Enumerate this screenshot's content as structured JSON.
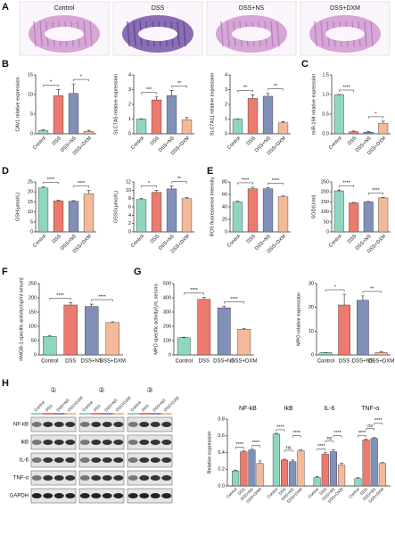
{
  "figure": {
    "panel_labels": [
      "A",
      "B",
      "C",
      "D",
      "E",
      "F",
      "G",
      "H"
    ],
    "histology_labels": [
      "Control",
      "DSS",
      "DSS+NS",
      "DSS+DXM"
    ],
    "blot": {
      "lanes": [
        "①",
        "②",
        "③"
      ],
      "lane_labels": [
        "Control",
        "DSS",
        "DSS+NS",
        "DSS+DXM"
      ],
      "proteins": [
        "NF-kB",
        "IkB",
        "IL-6",
        "TNF-α",
        "GAPDH"
      ]
    }
  },
  "chart_data": [
    {
      "type": "bar",
      "ylabel": "CAV1 relative expression",
      "categories": [
        "Control",
        "DSS",
        "DSS+NS",
        "DSS+DXM"
      ],
      "colors": [
        "#8fd6c1",
        "#ec7a6e",
        "#8090b8",
        "#f4b998"
      ],
      "values": [
        0.8,
        9.7,
        10.3,
        0.6
      ],
      "errors": [
        0.2,
        1.6,
        2.4,
        0.3
      ],
      "ylim": [
        0,
        15
      ],
      "yticks": [
        0,
        5,
        10,
        15
      ],
      "significance": [
        {
          "between": [
            "Control",
            "DSS"
          ],
          "label": "*"
        },
        {
          "between": [
            "DSS+NS",
            "DSS+DXM"
          ],
          "label": "*"
        }
      ]
    },
    {
      "type": "bar",
      "ylabel": "SLC7A5 relative expression",
      "categories": [
        "Control",
        "DSS",
        "DSS+NS",
        "DSS+DXM"
      ],
      "colors": [
        "#8fd6c1",
        "#ec7a6e",
        "#8090b8",
        "#f4b998"
      ],
      "values": [
        1.0,
        2.3,
        2.6,
        0.95
      ],
      "errors": [
        0.02,
        0.2,
        0.35,
        0.15
      ],
      "ylim": [
        0,
        4
      ],
      "yticks": [
        0,
        1,
        2,
        3,
        4
      ],
      "significance": [
        {
          "between": [
            "Control",
            "DSS"
          ],
          "label": "***"
        },
        {
          "between": [
            "DSS+NS",
            "DSS+DXM"
          ],
          "label": "**"
        }
      ]
    },
    {
      "type": "bar",
      "ylabel": "SLC7A11 relative expression",
      "categories": [
        "Control",
        "DSS",
        "DSS+NS",
        "DSS+DXM"
      ],
      "colors": [
        "#8fd6c1",
        "#ec7a6e",
        "#8090b8",
        "#f4b998"
      ],
      "values": [
        1.0,
        2.4,
        2.55,
        0.75
      ],
      "errors": [
        0.02,
        0.25,
        0.2,
        0.08
      ],
      "ylim": [
        0,
        4
      ],
      "yticks": [
        0,
        1,
        2,
        3,
        4
      ],
      "significance": [
        {
          "between": [
            "Control",
            "DSS"
          ],
          "label": "**"
        },
        {
          "between": [
            "DSS+NS",
            "DSS+DXM"
          ],
          "label": "**"
        }
      ]
    },
    {
      "type": "bar",
      "ylabel": "miR-194 relative expression",
      "categories": [
        "Control",
        "DSS",
        "DSS+NS",
        "DSS+DXM"
      ],
      "colors": [
        "#8fd6c1",
        "#ec7a6e",
        "#8090b8",
        "#f4b998"
      ],
      "values": [
        1.0,
        0.05,
        0.04,
        0.27
      ],
      "errors": [
        0.0,
        0.02,
        0.02,
        0.05
      ],
      "ylim": [
        0,
        1.5
      ],
      "yticks": [
        {
          "value": 0,
          "label": "0.0"
        },
        0.5,
        {
          "value": 1,
          "label": "1.0"
        },
        1.5
      ],
      "significance": [
        {
          "between": [
            "Control",
            "DSS"
          ],
          "label": "****"
        },
        {
          "between": [
            "DSS+NS",
            "DSS+DXM"
          ],
          "label": "*"
        }
      ]
    },
    {
      "type": "bar",
      "ylabel": "GSH(μmol/L)",
      "categories": [
        "Control",
        "DSS",
        "DSS+NS",
        "DSS+DXM"
      ],
      "colors": [
        "#8fd6c1",
        "#ec7a6e",
        "#8090b8",
        "#f4b998"
      ],
      "values": [
        22,
        15.5,
        15.3,
        19
      ],
      "errors": [
        0.6,
        0.3,
        0.3,
        1.8
      ],
      "ylim": [
        0,
        25
      ],
      "yticks": [
        0,
        5,
        10,
        15,
        20,
        25
      ],
      "significance": [
        {
          "between": [
            "Control",
            "DSS"
          ],
          "label": "****"
        },
        {
          "between": [
            "DSS+NS",
            "DSS+DXM"
          ],
          "label": "****"
        }
      ]
    },
    {
      "type": "bar",
      "ylabel": "GSSG(μmol/L)",
      "categories": [
        "Control",
        "DSS",
        "DSS+NS",
        "DSS+DXM"
      ],
      "colors": [
        "#8fd6c1",
        "#ec7a6e",
        "#8090b8",
        "#f4b998"
      ],
      "values": [
        7.8,
        9.5,
        10.3,
        8
      ],
      "errors": [
        0.2,
        0.5,
        0.7,
        0.2
      ],
      "ylim": [
        0,
        12
      ],
      "yticks": [
        0,
        2,
        4,
        6,
        8,
        10,
        12
      ],
      "significance": [
        {
          "between": [
            "Control",
            "DSS"
          ],
          "label": "*"
        },
        {
          "between": [
            "DSS+NS",
            "DSS+DXM"
          ],
          "label": "**"
        }
      ]
    },
    {
      "type": "bar",
      "ylabel": "ROS fluorescence Intensity",
      "categories": [
        "Control",
        "DSS",
        "DSS+NS",
        "DSS+DXM"
      ],
      "colors": [
        "#8fd6c1",
        "#ec7a6e",
        "#8090b8",
        "#f4b998"
      ],
      "values": [
        48,
        69,
        69,
        56
      ],
      "errors": [
        1,
        2.5,
        2,
        1.5
      ],
      "ylim": [
        0,
        80
      ],
      "yticks": [
        0,
        20,
        40,
        60,
        80
      ],
      "significance": [
        {
          "between": [
            "Control",
            "DSS"
          ],
          "label": "****"
        },
        {
          "between": [
            "DSS+NS",
            "DSS+DXM"
          ],
          "label": "****"
        }
      ]
    },
    {
      "type": "bar",
      "ylabel": "SOD(U/ml)",
      "categories": [
        "Control",
        "DSS",
        "DSS+NS",
        "DSS+DXM"
      ],
      "colors": [
        "#8fd6c1",
        "#ec7a6e",
        "#8090b8",
        "#f4b998"
      ],
      "values": [
        205,
        145,
        150,
        170
      ],
      "errors": [
        4,
        2,
        2,
        2
      ],
      "ylim": [
        0,
        250
      ],
      "yticks": [
        0,
        50,
        100,
        150,
        200,
        250
      ],
      "significance": [
        {
          "between": [
            "Control",
            "DSS"
          ],
          "label": "****"
        },
        {
          "between": [
            "DSS+NS",
            "DSS+DXM"
          ],
          "label": "****"
        }
      ]
    },
    {
      "type": "bar",
      "ylabel": "HMGB-1 specific activity(ng/ml serum)",
      "categories": [
        "Control",
        "DSS",
        "DSS+NS",
        "DSS+DXM"
      ],
      "colors": [
        "#8fd6c1",
        "#ec7a6e",
        "#8090b8",
        "#f4b998"
      ],
      "values": [
        65,
        175,
        170,
        113
      ],
      "errors": [
        3,
        8,
        8,
        3
      ],
      "ylim": [
        0,
        250
      ],
      "yticks": [
        0,
        50,
        100,
        150,
        200,
        250
      ],
      "significance": [
        {
          "between": [
            "Control",
            "DSS"
          ],
          "label": "****"
        },
        {
          "between": [
            "DSS+NS",
            "DSS+DXM"
          ],
          "label": "****"
        }
      ]
    },
    {
      "type": "bar",
      "ylabel": "MPO specific activity(U/L serum)",
      "categories": [
        "Control",
        "DSS",
        "DSS+NS",
        "DSS+DXM"
      ],
      "colors": [
        "#8fd6c1",
        "#ec7a6e",
        "#8090b8",
        "#f4b998"
      ],
      "values": [
        120,
        390,
        330,
        180
      ],
      "errors": [
        4,
        12,
        10,
        6
      ],
      "ylim": [
        0,
        500
      ],
      "yticks": [
        0,
        100,
        200,
        300,
        400,
        500
      ],
      "significance": [
        {
          "between": [
            "Control",
            "DSS"
          ],
          "label": "****"
        },
        {
          "between": [
            "DSS+NS",
            "DSS+DXM"
          ],
          "label": "****"
        }
      ]
    },
    {
      "type": "bar",
      "ylabel": "MPO relative expression",
      "categories": [
        "Control",
        "DSS",
        "DSS+NS",
        "DSS+DXM"
      ],
      "colors": [
        "#8fd6c1",
        "#ec7a6e",
        "#8090b8",
        "#f4b998"
      ],
      "values": [
        1,
        21,
        23,
        1
      ],
      "errors": [
        0,
        4.5,
        1.8,
        0.3
      ],
      "ylim": [
        0,
        30
      ],
      "yticks": [
        0,
        10,
        20,
        30
      ],
      "significance": [
        {
          "between": [
            "Control",
            "DSS"
          ],
          "label": "*"
        },
        {
          "between": [
            "DSS+NS",
            "DSS+DXM"
          ],
          "label": "**"
        }
      ]
    },
    {
      "type": "grouped_bar",
      "ylabel": "Relative expression",
      "categories": [
        "NF-kB",
        "IkB",
        "IL-6",
        "TNF-α"
      ],
      "series": [
        {
          "name": "Control",
          "color": "#8fd6c1",
          "values": [
            0.18,
            0.62,
            0.1,
            0.09
          ],
          "errors": [
            0.01,
            0.01,
            0.01,
            0.01
          ]
        },
        {
          "name": "DSS",
          "color": "#ec7a6e",
          "values": [
            0.41,
            0.31,
            0.38,
            0.55
          ],
          "errors": [
            0.01,
            0.01,
            0.02,
            0.01
          ]
        },
        {
          "name": "DSS+NS",
          "color": "#8090b8",
          "values": [
            0.43,
            0.29,
            0.41,
            0.57
          ],
          "errors": [
            0.01,
            0.02,
            0.02,
            0.01
          ]
        },
        {
          "name": "DSS+DXM",
          "color": "#f4b998",
          "values": [
            0.27,
            0.42,
            0.25,
            0.27
          ],
          "errors": [
            0.03,
            0.01,
            0.02,
            0.01
          ]
        }
      ],
      "ylim": [
        0,
        0.8
      ],
      "yticks": [
        {
          "value": 0,
          "label": "0.0"
        },
        0.2,
        0.4,
        0.6,
        0.8
      ],
      "significance": [
        {
          "group": "NF-kB",
          "between": [
            "Control",
            "DSS"
          ],
          "label": "****"
        },
        {
          "group": "NF-kB",
          "between": [
            "DSS+NS",
            "DSS+DXM"
          ],
          "label": "****"
        },
        {
          "group": "IkB",
          "between": [
            "Control",
            "DSS"
          ],
          "label": "****"
        },
        {
          "group": "IkB",
          "between": [
            "DSS",
            "DSS+NS"
          ],
          "label": "ns"
        },
        {
          "group": "IkB",
          "between": [
            "DSS+NS",
            "DSS+DXM"
          ],
          "label": "****"
        },
        {
          "group": "IL-6",
          "between": [
            "Control",
            "DSS"
          ],
          "label": "****"
        },
        {
          "group": "IL-6",
          "between": [
            "DSS",
            "DSS+NS"
          ],
          "label": "ns"
        },
        {
          "group": "IL-6",
          "between": [
            "DSS+NS",
            "DSS+DXM"
          ],
          "label": "****"
        },
        {
          "group": "TNF-α",
          "between": [
            "Control",
            "DSS"
          ],
          "label": "****"
        },
        {
          "group": "TNF-α",
          "between": [
            "DSS",
            "DSS+NS"
          ],
          "label": "ns"
        },
        {
          "group": "TNF-α",
          "between": [
            "DSS+NS",
            "DSS+DXM"
          ],
          "label": "****"
        }
      ]
    }
  ]
}
